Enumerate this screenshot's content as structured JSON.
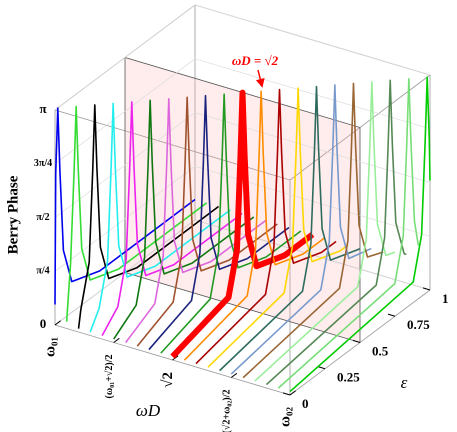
{
  "chart_data": {
    "type": "line3d",
    "x_label": "ωD",
    "y_label": "ε",
    "z_label": "Berry Phase",
    "annotation": "ωD = √2",
    "xlim": [
      1,
      1.828
    ],
    "xticks": [
      {
        "value": 1,
        "label": "ω₀₁"
      },
      {
        "value": 1.207,
        "label": "(ω₀₁+√2)/2"
      },
      {
        "value": 1.414,
        "label": "√2"
      },
      {
        "value": 1.621,
        "label": "(√2+ω₀₂)/2"
      },
      {
        "value": 1.828,
        "label": "ω₀₂"
      }
    ],
    "ylim": [
      0,
      1
    ],
    "yticks": [
      0,
      0.25,
      0.5,
      0.75,
      1
    ],
    "zlim": [
      0,
      3.142
    ],
    "zticks": [
      0,
      {
        "value": 0.785,
        "label": "π/4"
      },
      {
        "value": 1.571,
        "label": "π/2"
      },
      {
        "value": 2.356,
        "label": "3π/4"
      },
      {
        "value": 3.142,
        "label": "π"
      }
    ],
    "plane_epsilon": 0.5,
    "series": [
      {
        "color": "#0000ee",
        "omega_D": 1,
        "epsilon": [
          0,
          0.005,
          0.02,
          0.035,
          0.06,
          0.12,
          0.32,
          1
        ],
        "values": [
          0.3,
          2.2,
          3.14,
          2.2,
          1.0,
          0.45,
          0.3,
          0.3
        ]
      },
      {
        "color": "#33dd33",
        "omega_D": 1.041,
        "epsilon": [
          0,
          0.028,
          0.053,
          0.068,
          0.083,
          0.108,
          0.168,
          0.368,
          1
        ],
        "values": [
          0.1,
          0.9,
          2.2,
          3.14,
          2.2,
          1.0,
          0.45,
          0.3,
          0.3
        ]
      },
      {
        "color": "#000000",
        "omega_D": 1.083,
        "epsilon": [
          0,
          0.016,
          0.076,
          0.101,
          0.116,
          0.131,
          0.156,
          0.216,
          0.416,
          1
        ],
        "values": [
          0.05,
          0.3,
          0.9,
          2.2,
          3.14,
          2.2,
          1.0,
          0.45,
          0.3,
          0.3
        ]
      },
      {
        "color": "#22eeee",
        "omega_D": 1.124,
        "epsilon": [
          0,
          0.064,
          0.124,
          0.149,
          0.164,
          0.179,
          0.204,
          0.264,
          0.464,
          1
        ],
        "values": [
          0.05,
          0.3,
          0.9,
          2.2,
          3.14,
          2.2,
          1.0,
          0.45,
          0.3,
          0.3
        ]
      },
      {
        "color": "#ee22ee",
        "omega_D": 1.166,
        "epsilon": [
          0,
          0.112,
          0.172,
          0.197,
          0.212,
          0.227,
          0.252,
          0.312,
          0.512,
          1
        ],
        "values": [
          0.05,
          0.3,
          0.9,
          2.2,
          3.14,
          2.2,
          1.0,
          0.45,
          0.3,
          0.3
        ]
      },
      {
        "color": "#117711",
        "omega_D": 1.207,
        "epsilon": [
          0,
          0.16,
          0.22,
          0.245,
          0.26,
          0.275,
          0.3,
          0.36,
          0.56,
          1
        ],
        "values": [
          0.05,
          0.3,
          0.9,
          2.2,
          3.14,
          2.2,
          1.0,
          0.45,
          0.3,
          0.3
        ]
      },
      {
        "color": "#dd66dd",
        "omega_D": 1.249,
        "epsilon": [
          0,
          0.208,
          0.268,
          0.293,
          0.308,
          0.323,
          0.348,
          0.408,
          0.608,
          1
        ],
        "values": [
          0.05,
          0.3,
          0.9,
          2.2,
          3.14,
          2.2,
          1.0,
          0.45,
          0.3,
          0.3
        ]
      },
      {
        "color": "#a0522d",
        "omega_D": 1.29,
        "epsilon": [
          0,
          0.256,
          0.316,
          0.341,
          0.356,
          0.371,
          0.396,
          0.456,
          0.656,
          1
        ],
        "values": [
          0.05,
          0.3,
          0.9,
          2.2,
          3.14,
          2.2,
          1.0,
          0.45,
          0.3,
          0.3
        ]
      },
      {
        "color": "#1a237e",
        "omega_D": 1.331,
        "epsilon": [
          0,
          0.304,
          0.364,
          0.389,
          0.404,
          0.419,
          0.444,
          0.504,
          0.704,
          1
        ],
        "values": [
          0.05,
          0.3,
          0.9,
          2.2,
          3.14,
          2.2,
          1.0,
          0.45,
          0.3,
          0.3
        ]
      },
      {
        "color": "#229922",
        "omega_D": 1.373,
        "epsilon": [
          0,
          0.352,
          0.412,
          0.437,
          0.452,
          0.467,
          0.492,
          0.552,
          0.752,
          1
        ],
        "values": [
          0.05,
          0.3,
          0.9,
          2.2,
          3.14,
          2.2,
          1.0,
          0.45,
          0.3,
          0.3
        ]
      },
      {
        "color": "#ff0000",
        "omega_D": 1.414,
        "line_width": 6,
        "epsilon": [
          0,
          0.4,
          0.46,
          0.485,
          0.5,
          0.515,
          0.54,
          0.6,
          0.8,
          1
        ],
        "values": [
          0.05,
          0.3,
          0.9,
          2.2,
          3.14,
          2.2,
          1.0,
          0.45,
          0.3,
          0.3
        ]
      },
      {
        "color": "#ff8c00",
        "omega_D": 1.456,
        "epsilon": [
          0,
          0.448,
          0.508,
          0.533,
          0.548,
          0.563,
          0.588,
          0.648,
          0.848,
          1
        ],
        "values": [
          0.05,
          0.3,
          0.9,
          2.2,
          3.14,
          2.2,
          1.0,
          0.45,
          0.3,
          0.3
        ]
      },
      {
        "color": "#aa0000",
        "omega_D": 1.497,
        "epsilon": [
          0,
          0.496,
          0.556,
          0.581,
          0.596,
          0.611,
          0.636,
          0.696,
          0.896,
          1
        ],
        "values": [
          0.05,
          0.3,
          0.9,
          2.2,
          3.14,
          2.2,
          1.0,
          0.45,
          0.3,
          0.3
        ]
      },
      {
        "color": "#ffd700",
        "omega_D": 1.539,
        "epsilon": [
          0,
          0.544,
          0.604,
          0.629,
          0.644,
          0.659,
          0.684,
          0.744,
          0.944,
          1
        ],
        "values": [
          0.05,
          0.3,
          0.9,
          2.2,
          3.14,
          2.2,
          1.0,
          0.45,
          0.3,
          0.3
        ]
      },
      {
        "color": "#2e6b5e",
        "omega_D": 1.58,
        "epsilon": [
          0,
          0.592,
          0.652,
          0.677,
          0.692,
          0.707,
          0.732,
          0.792,
          0.992,
          1
        ],
        "values": [
          0.05,
          0.3,
          0.9,
          2.2,
          3.14,
          2.2,
          1.0,
          0.45,
          0.3,
          0.3
        ]
      },
      {
        "color": "#7799cc",
        "omega_D": 1.621,
        "epsilon": [
          0,
          0.64,
          0.7,
          0.725,
          0.74,
          0.755,
          0.78,
          0.84,
          1
        ],
        "values": [
          0.05,
          0.3,
          0.9,
          2.2,
          3.14,
          2.2,
          1.0,
          0.45,
          0.35
        ]
      },
      {
        "color": "#996633",
        "omega_D": 1.663,
        "epsilon": [
          0,
          0.688,
          0.748,
          0.773,
          0.788,
          0.803,
          0.828,
          0.888,
          1
        ],
        "values": [
          0.05,
          0.3,
          0.9,
          2.2,
          3.14,
          2.2,
          1.0,
          0.45,
          0.35
        ]
      },
      {
        "color": "#99ee99",
        "omega_D": 1.704,
        "epsilon": [
          0,
          0.736,
          0.796,
          0.821,
          0.836,
          0.851,
          0.876,
          0.936,
          1
        ],
        "values": [
          0.05,
          0.3,
          0.9,
          2.2,
          3.14,
          2.2,
          1.0,
          0.45,
          0.4
        ]
      },
      {
        "color": "#558855",
        "omega_D": 1.745,
        "epsilon": [
          0,
          0.784,
          0.844,
          0.869,
          0.884,
          0.899,
          0.924,
          0.984,
          1
        ],
        "values": [
          0.05,
          0.3,
          0.9,
          2.2,
          3.14,
          2.2,
          1.0,
          0.45,
          0.42
        ]
      },
      {
        "color": "#77dd77",
        "omega_D": 1.787,
        "epsilon": [
          0,
          0.832,
          0.892,
          0.917,
          0.932,
          0.947,
          0.972,
          1
        ],
        "values": [
          0.05,
          0.3,
          0.9,
          2.2,
          3.14,
          2.2,
          1.0,
          0.6
        ]
      },
      {
        "color": "#00cc00",
        "omega_D": 1.828,
        "epsilon": [
          0,
          0.88,
          0.94,
          0.965,
          0.98,
          0.995,
          1
        ],
        "values": [
          0.05,
          0.3,
          0.9,
          2.2,
          3.14,
          2.2,
          1.6
        ]
      }
    ]
  }
}
